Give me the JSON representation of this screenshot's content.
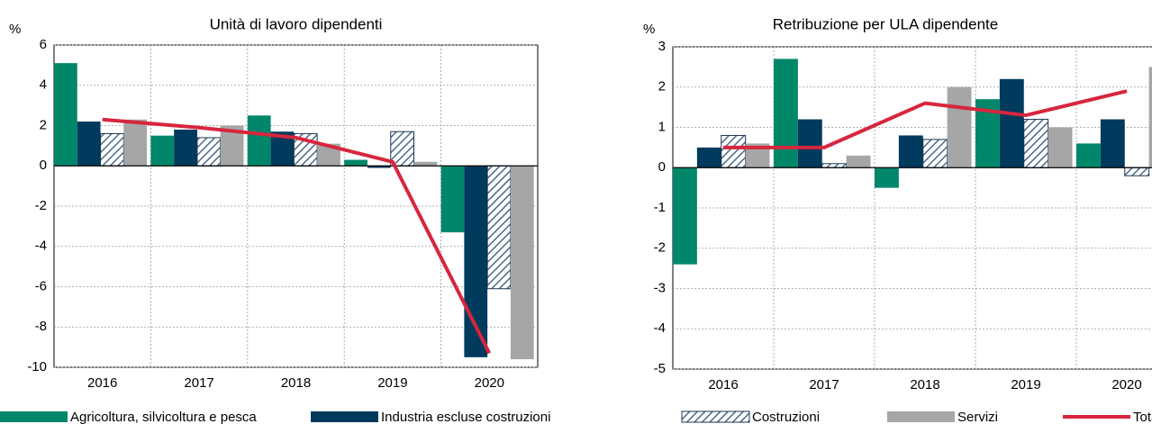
{
  "legend": [
    {
      "name": "Agricoltura, silvicoltura e pesca",
      "color": "#00876a",
      "style": "bar"
    },
    {
      "name": "Industria escluse costruzioni",
      "color": "#003a5d",
      "style": "bar"
    },
    {
      "name": "Costruzioni",
      "color": "#4a6a8a",
      "style": "hatch"
    },
    {
      "name": "Servizi",
      "color": "#a6a6a6",
      "style": "bar"
    },
    {
      "name": "Totale",
      "color": "#d7263d",
      "style": "line"
    }
  ],
  "chart_data": [
    {
      "type": "bar",
      "title": "Unità di lavoro dipendenti",
      "y_unit": "%",
      "categories": [
        "2016",
        "2017",
        "2018",
        "2019",
        "2020"
      ],
      "ylim": [
        -10,
        6
      ],
      "yticks": [
        -10,
        -8,
        -6,
        -4,
        -2,
        0,
        2,
        4,
        6
      ],
      "grid": true,
      "series": [
        {
          "values": [
            5.1,
            1.5,
            2.5,
            0.3,
            -3.3
          ]
        },
        {
          "values": [
            2.2,
            1.8,
            1.7,
            -0.1,
            -9.5
          ]
        },
        {
          "values": [
            1.6,
            1.4,
            1.6,
            1.7,
            -6.1
          ]
        },
        {
          "values": [
            2.3,
            2.0,
            1.1,
            0.2,
            -9.6
          ]
        },
        {
          "values": [
            2.3,
            1.9,
            1.4,
            0.2,
            -9.3
          ]
        }
      ]
    },
    {
      "type": "bar",
      "title": "Retribuzione per ULA dipendente",
      "y_unit": "%",
      "categories": [
        "2016",
        "2017",
        "2018",
        "2019",
        "2020"
      ],
      "ylim": [
        -5,
        3
      ],
      "yticks": [
        -5,
        -4,
        -3,
        -2,
        -1,
        0,
        1,
        2,
        3
      ],
      "grid": true,
      "series": [
        {
          "values": [
            -2.4,
            2.7,
            -0.5,
            1.7,
            0.6
          ]
        },
        {
          "values": [
            0.5,
            1.2,
            0.8,
            2.2,
            1.2
          ]
        },
        {
          "values": [
            0.8,
            0.1,
            0.7,
            1.2,
            -0.2
          ]
        },
        {
          "values": [
            0.6,
            0.3,
            2.0,
            1.0,
            2.5
          ]
        },
        {
          "values": [
            0.5,
            0.5,
            1.6,
            1.3,
            1.9
          ]
        }
      ]
    }
  ]
}
